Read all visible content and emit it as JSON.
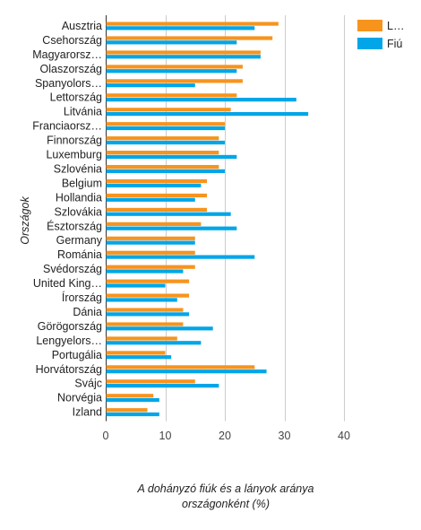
{
  "chart_data": {
    "type": "bar",
    "orientation": "horizontal",
    "title": "",
    "xlabel": "A dohányzó fiúk és a lányok aránya országonként (%)",
    "ylabel": "Országok",
    "xlim": [
      0,
      40
    ],
    "xticks": [
      0,
      10,
      20,
      30,
      40
    ],
    "grid": true,
    "legend_position": "top-right",
    "categories": [
      "Ausztria",
      "Csehország",
      "Magyarorsz…",
      "Olaszország",
      "Spanyolors…",
      "Lettország",
      "Litvánia",
      "Franciaorsz…",
      "Finnország",
      "Luxemburg",
      "Szlovénia",
      "Belgium",
      "Hollandia",
      "Szlovákia",
      "Észtország",
      "Germany",
      "Románia",
      "Svédország",
      "United King…",
      "Írország",
      "Dánia",
      "Görögország",
      "Lengyelors…",
      "Portugália",
      "Horvátország",
      "Svájc",
      "Norvégia",
      "Izland"
    ],
    "series": [
      {
        "name": "L…",
        "color": "#f7941d",
        "values": [
          29,
          28,
          26,
          23,
          23,
          22,
          21,
          20,
          19,
          19,
          19,
          17,
          17,
          17,
          16,
          15,
          15,
          15,
          14,
          14,
          13,
          13,
          12,
          10,
          25,
          15,
          8,
          7
        ]
      },
      {
        "name": "Fiú",
        "color": "#00a6e8",
        "values": [
          25,
          22,
          26,
          22,
          15,
          32,
          34,
          20,
          20,
          22,
          20,
          16,
          15,
          21,
          22,
          15,
          25,
          13,
          10,
          12,
          14,
          18,
          16,
          11,
          27,
          19,
          9,
          9
        ]
      }
    ]
  }
}
